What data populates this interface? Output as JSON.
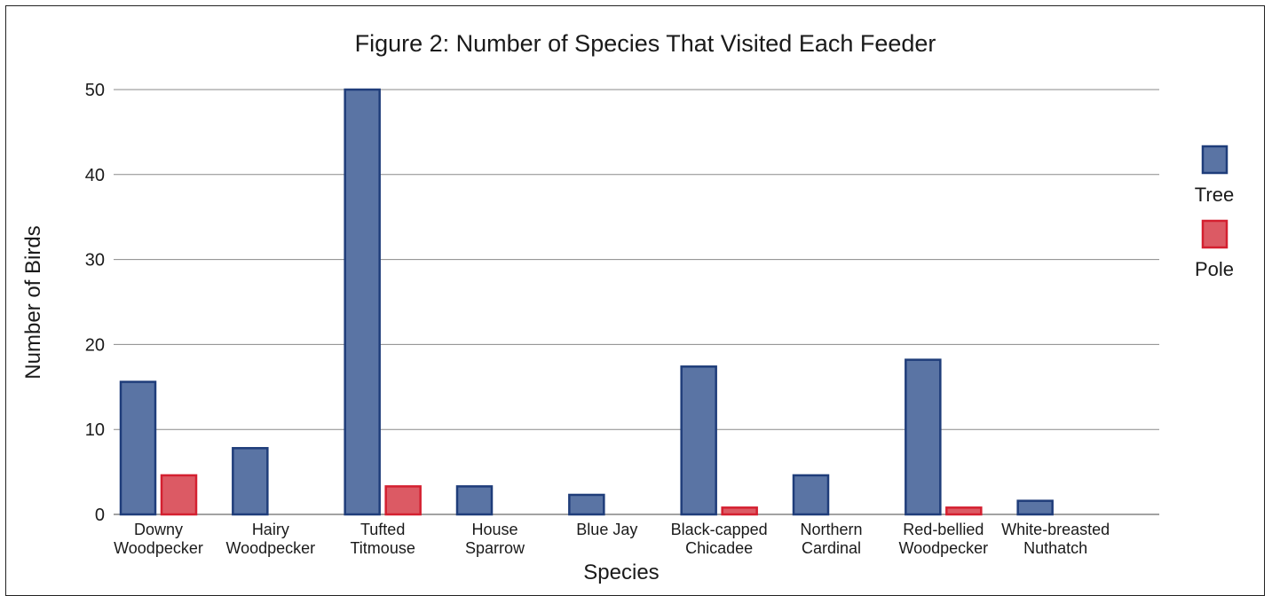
{
  "chart_data": {
    "type": "bar",
    "title": "Figure 2: Number of Species That Visited Each Feeder",
    "xlabel": "Species",
    "ylabel": "Number of Birds",
    "ylim": [
      0,
      50
    ],
    "yticks": [
      0,
      10,
      20,
      30,
      40,
      50
    ],
    "grid": true,
    "legend_position": "right",
    "categories": [
      [
        "Downy",
        "Woodpecker"
      ],
      [
        "Hairy",
        "Woodpecker"
      ],
      [
        "Tufted",
        "Titmouse"
      ],
      [
        "House",
        "Sparrow"
      ],
      [
        "Blue Jay"
      ],
      [
        "Black-capped",
        "Chicadee"
      ],
      [
        "Northern",
        "Cardinal"
      ],
      [
        "Red-bellied",
        "Woodpecker"
      ],
      [
        "White-breasted",
        "Nuthatch"
      ]
    ],
    "series": [
      {
        "name": "Tree",
        "color": "#5a74a4",
        "stroke": "#1f3d7a",
        "values": [
          15.6,
          7.8,
          50,
          3.3,
          2.3,
          17.4,
          4.6,
          18.2,
          1.6
        ]
      },
      {
        "name": "Pole",
        "color": "#dc5a64",
        "stroke": "#d42030",
        "values": [
          4.6,
          0,
          3.3,
          0,
          0,
          0.8,
          0,
          0.8,
          0
        ]
      }
    ]
  }
}
